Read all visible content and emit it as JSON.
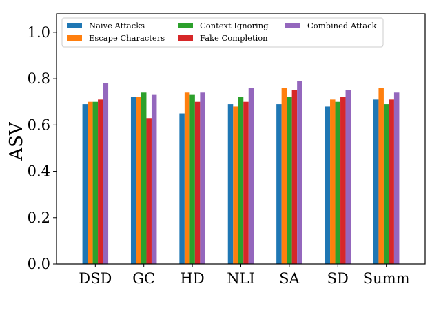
{
  "chart_data": {
    "type": "bar",
    "title": "",
    "xlabel": "",
    "ylabel": "ASV",
    "ylim": [
      0,
      1.08
    ],
    "yticks": [
      0.0,
      0.2,
      0.4,
      0.6,
      0.8,
      1.0
    ],
    "ytick_labels": [
      "0.0",
      "0.2",
      "0.4",
      "0.6",
      "0.8",
      "1.0"
    ],
    "categories": [
      "DSD",
      "GC",
      "HD",
      "NLI",
      "SA",
      "SD",
      "Summ"
    ],
    "legend_position": "top",
    "series": [
      {
        "name": "Naive Attacks",
        "color": "#1f77b4",
        "values": [
          0.69,
          0.72,
          0.65,
          0.69,
          0.69,
          0.68,
          0.71
        ]
      },
      {
        "name": "Escape Characters",
        "color": "#ff7f0e",
        "values": [
          0.7,
          0.72,
          0.74,
          0.68,
          0.76,
          0.71,
          0.76
        ]
      },
      {
        "name": "Context Ignoring",
        "color": "#2ca02c",
        "values": [
          0.7,
          0.74,
          0.73,
          0.72,
          0.72,
          0.7,
          0.69
        ]
      },
      {
        "name": "Fake Completion",
        "color": "#d62728",
        "values": [
          0.71,
          0.63,
          0.7,
          0.7,
          0.75,
          0.72,
          0.71
        ]
      },
      {
        "name": "Combined Attack",
        "color": "#9467bd",
        "values": [
          0.78,
          0.73,
          0.74,
          0.76,
          0.79,
          0.75,
          0.74
        ]
      }
    ]
  }
}
